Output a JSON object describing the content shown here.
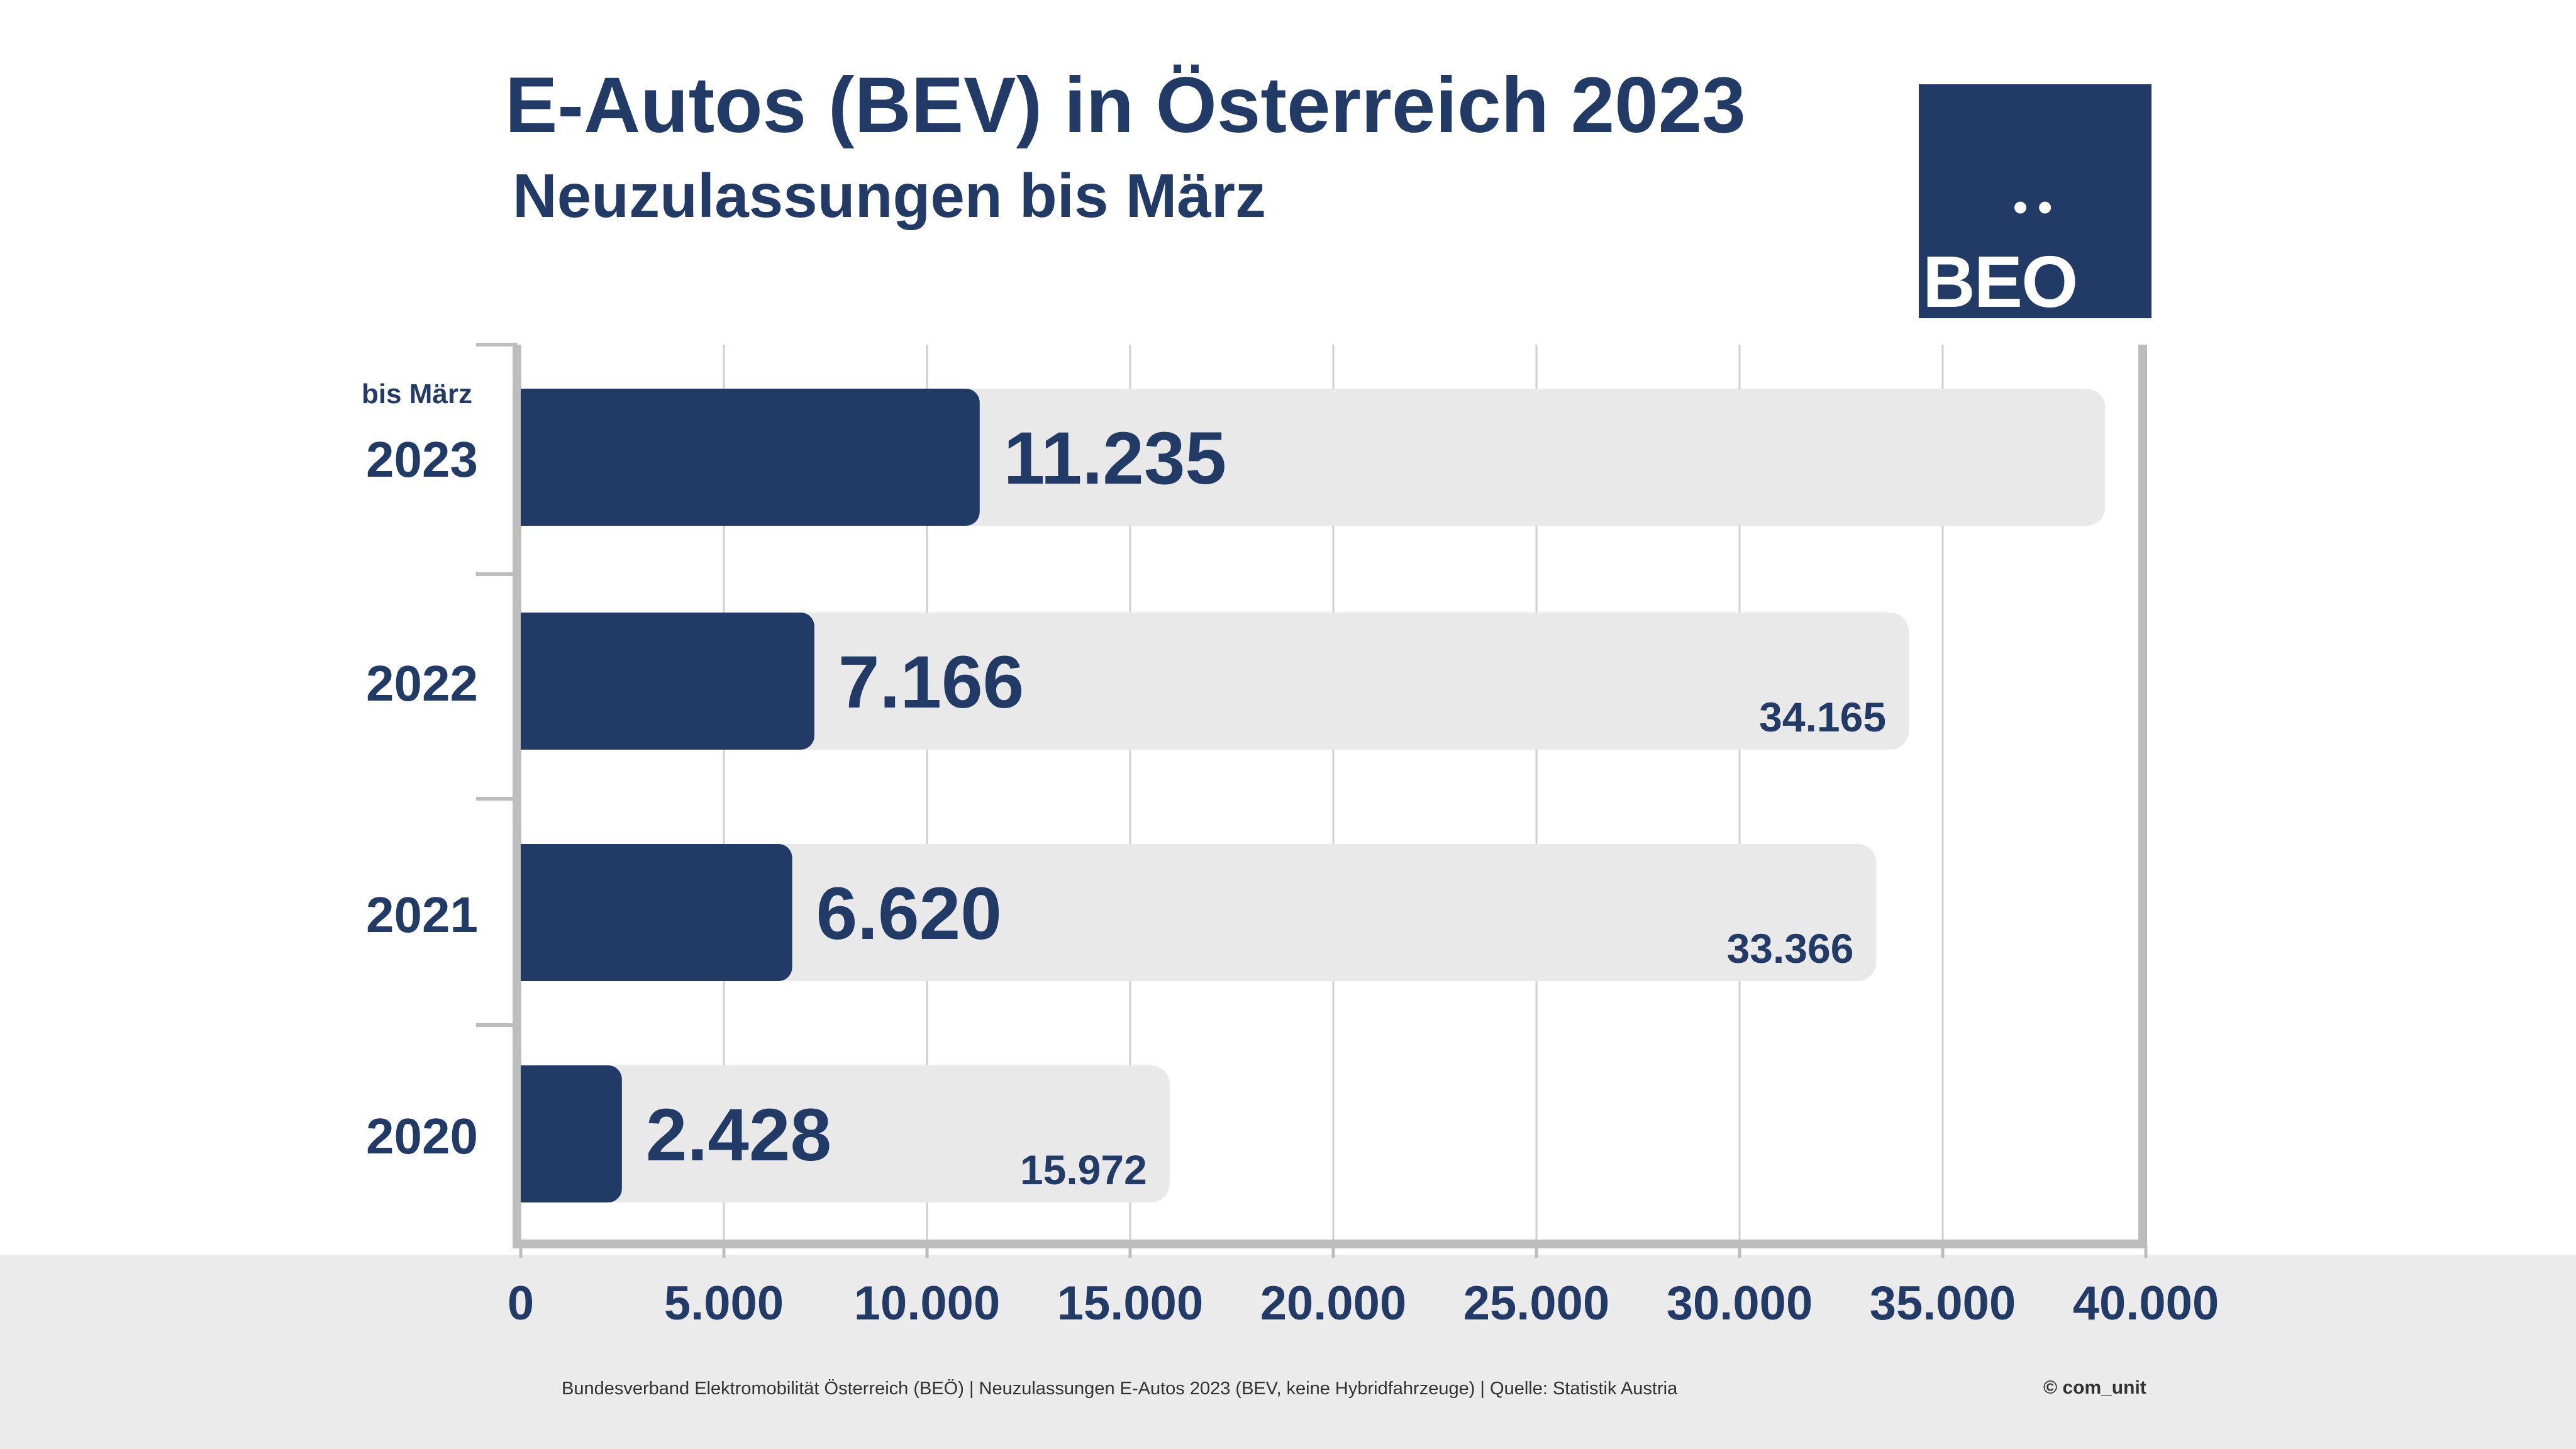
{
  "header": {
    "title": "E-Autos (BEV) in Österreich 2023",
    "subtitle": "Neuzulassungen bis März"
  },
  "logo": {
    "text": "BEO",
    "dots": "••"
  },
  "colors": {
    "primary": "#223a66",
    "track": "#e9e9ea",
    "grid": "#cfcfcf",
    "axis": "#bdbdbd"
  },
  "chart_data": {
    "type": "bar",
    "orientation": "horizontal",
    "categories": [
      "2023",
      "2022",
      "2021",
      "2020"
    ],
    "category_notes": [
      "bis März",
      "",
      "",
      ""
    ],
    "series": [
      {
        "values": [
          11235,
          7166,
          6620,
          2428
        ],
        "labels": [
          "11.235",
          "7.166",
          "6.620",
          "2.428"
        ]
      },
      {
        "values": [
          39000,
          34165,
          33366,
          15972
        ],
        "labels": [
          "",
          "34.165",
          "33.366",
          "15.972"
        ]
      }
    ],
    "xlim": [
      0,
      40000
    ],
    "xticks": [
      0,
      5000,
      10000,
      15000,
      20000,
      25000,
      30000,
      35000,
      40000
    ],
    "xtick_labels": [
      "0",
      "5.000",
      "10.000",
      "15.000",
      "20.000",
      "25.000",
      "30.000",
      "35.000",
      "40.000"
    ],
    "grid": true
  },
  "footer": {
    "source": "Bundesverband Elektromobilität Österreich (BEÖ) | Neuzulassungen E-Autos 2023 (BEV, keine Hybridfahrzeuge) | Quelle: Statistik Austria",
    "copyright": "© com_unit"
  }
}
